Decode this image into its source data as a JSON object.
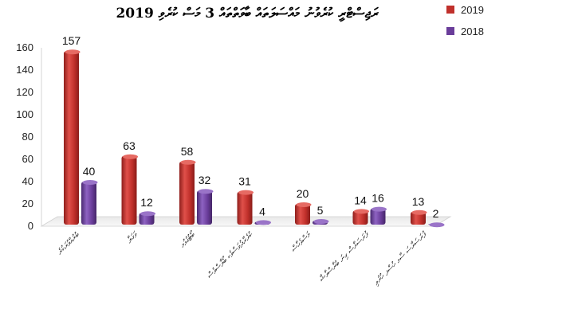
{
  "chart_data": {
    "type": "bar",
    "title": "ރަޖިސްޓްރީ ކުރެވުނު މައްސަލަތައް ބާވަތްތައް 3 މަސް ކުރެވި 2019",
    "categories": [
      "ބުރުއްވުރަކުރެ",
      "ވަގަލާ",
      "ބޯޓުގުޅުމ",
      "ކުރެރާދުވަސްވެކ ބޯލާސްވެސް",
      "މަސްވެހާސް",
      "ފުރަސަރާސް ގިނަ ބުރާސްވާޝާ",
      "ފުރަސަރާސަ ސާމ ހުސްފ ހުރުވި"
    ],
    "series": [
      {
        "name": "2019",
        "values": [
          157,
          63,
          58,
          31,
          20,
          14,
          13
        ],
        "color": "#c0302b"
      },
      {
        "name": "2018",
        "values": [
          40,
          12,
          32,
          4,
          5,
          16,
          2
        ],
        "color": "#6a3d9a"
      }
    ],
    "yticks": [
      "0",
      "20",
      "40",
      "60",
      "80",
      "100",
      "120",
      "140",
      "160"
    ],
    "ylim": [
      0,
      160
    ],
    "grid": false,
    "legend_position": "top-right",
    "xlabel": "",
    "ylabel": ""
  }
}
